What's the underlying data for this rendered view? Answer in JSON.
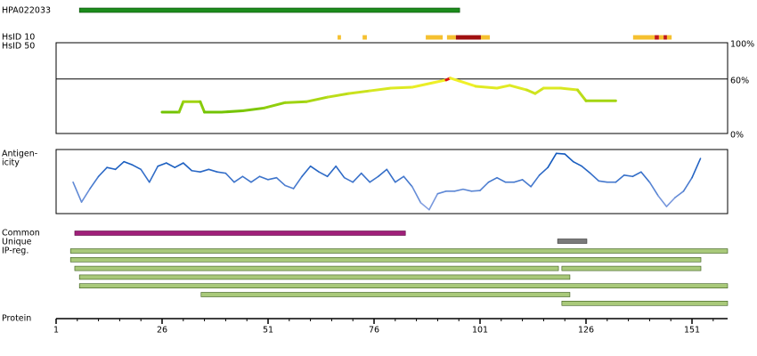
{
  "antibody": {
    "label": "HPA022033",
    "range": [
      6.5,
      96.2
    ],
    "color": "#1c8c1c"
  },
  "hsid10": {
    "label": "HsID 10",
    "segments": [
      {
        "start": 67.4,
        "end": 68.2,
        "color": "#f5c030"
      },
      {
        "start": 73.3,
        "end": 74.3,
        "color": "#f5c030"
      },
      {
        "start": 88.2,
        "end": 92.2,
        "color": "#f5c030"
      },
      {
        "start": 93.2,
        "end": 95.3,
        "color": "#f5c030"
      },
      {
        "start": 95.3,
        "end": 101.2,
        "color": "#a01010"
      },
      {
        "start": 101.2,
        "end": 103.3,
        "color": "#f5c030"
      },
      {
        "start": 137.1,
        "end": 142.2,
        "color": "#f5c030"
      },
      {
        "start": 142.2,
        "end": 143.2,
        "color": "#c01818"
      },
      {
        "start": 143.2,
        "end": 144.3,
        "color": "#f5c030"
      },
      {
        "start": 144.3,
        "end": 145.1,
        "color": "#c01818"
      },
      {
        "start": 145.1,
        "end": 146.2,
        "color": "#f5c030"
      }
    ]
  },
  "hsid50": {
    "label": "HsID 50",
    "ylim": [
      0,
      100
    ],
    "yticks": [
      {
        "value": 100,
        "label": "100%"
      },
      {
        "value": 60,
        "label": "60%"
      },
      {
        "value": 0,
        "label": "0%"
      }
    ],
    "x": [
      26,
      30,
      31,
      35,
      36,
      40,
      45,
      50,
      55,
      60,
      65,
      70,
      75,
      80,
      85,
      90,
      93,
      94,
      96,
      100,
      105,
      108,
      112,
      114,
      116,
      120,
      124,
      126,
      133
    ],
    "values": [
      23.5,
      23.5,
      35,
      35,
      23.5,
      23.5,
      25,
      28,
      34,
      35,
      40,
      44,
      47,
      50,
      51,
      56,
      59,
      61,
      58,
      52,
      50,
      53,
      48,
      44,
      50,
      50,
      48,
      36,
      36
    ]
  },
  "antigenicity": {
    "label": [
      "Antigen-",
      "icity"
    ],
    "ylim": [
      0,
      100
    ],
    "x": [
      5,
      7,
      9,
      11,
      13,
      15,
      17,
      19,
      21,
      23,
      25,
      27,
      29,
      31,
      33,
      35,
      37,
      39,
      41,
      43,
      45,
      47,
      49,
      51,
      53,
      55,
      57,
      59,
      61,
      63,
      65,
      67,
      69,
      71,
      73,
      75,
      77,
      79,
      81,
      83,
      85,
      87,
      89,
      91,
      93,
      95,
      97,
      99,
      101,
      103,
      105,
      107,
      109,
      111,
      113,
      115,
      117,
      119,
      121,
      123,
      125,
      127,
      129,
      131,
      133,
      135,
      137,
      139,
      141,
      143,
      145,
      147,
      149,
      151,
      153
    ],
    "values": [
      49,
      18,
      39,
      58,
      72,
      69,
      81,
      76,
      69,
      49,
      74,
      79,
      72,
      79,
      67,
      65,
      69,
      65,
      63,
      49,
      58,
      49,
      58,
      53,
      56,
      44,
      39,
      58,
      74,
      65,
      58,
      74,
      56,
      49,
      63,
      49,
      58,
      69,
      49,
      58,
      42,
      17,
      6,
      31,
      35,
      35,
      38,
      35,
      36,
      49,
      56,
      49,
      49,
      53,
      42,
      60,
      72,
      94,
      93,
      81,
      74,
      63,
      51,
      49,
      49,
      60,
      58,
      65,
      49,
      28,
      11,
      25,
      35,
      56,
      86
    ]
  },
  "common": {
    "label": "Common",
    "ranges": [
      [
        5.4,
        83.4
      ]
    ],
    "color": "#a0207a"
  },
  "unique": {
    "label": "Unique",
    "ranges": [
      [
        119.3,
        126.2
      ]
    ],
    "color": "#7a7a7a"
  },
  "ipreg": {
    "label": "IP-reg.",
    "color": "#a9c97a",
    "rows": [
      [
        [
          4.4,
          159.4
        ]
      ],
      [
        [
          4.4,
          153.1
        ]
      ],
      [
        [
          5.4,
          119.5
        ],
        [
          120.3,
          153.1
        ]
      ],
      [
        [
          6.5,
          122.2
        ]
      ],
      [
        [
          6.5,
          159.4
        ]
      ],
      [
        [
          35.2,
          122.2
        ]
      ],
      [
        [
          120.3,
          159.4
        ]
      ]
    ]
  },
  "axis": {
    "label": "Protein",
    "xlim": [
      1,
      159.4
    ],
    "ticks": [
      1,
      26,
      51,
      76,
      101,
      126,
      151
    ]
  }
}
